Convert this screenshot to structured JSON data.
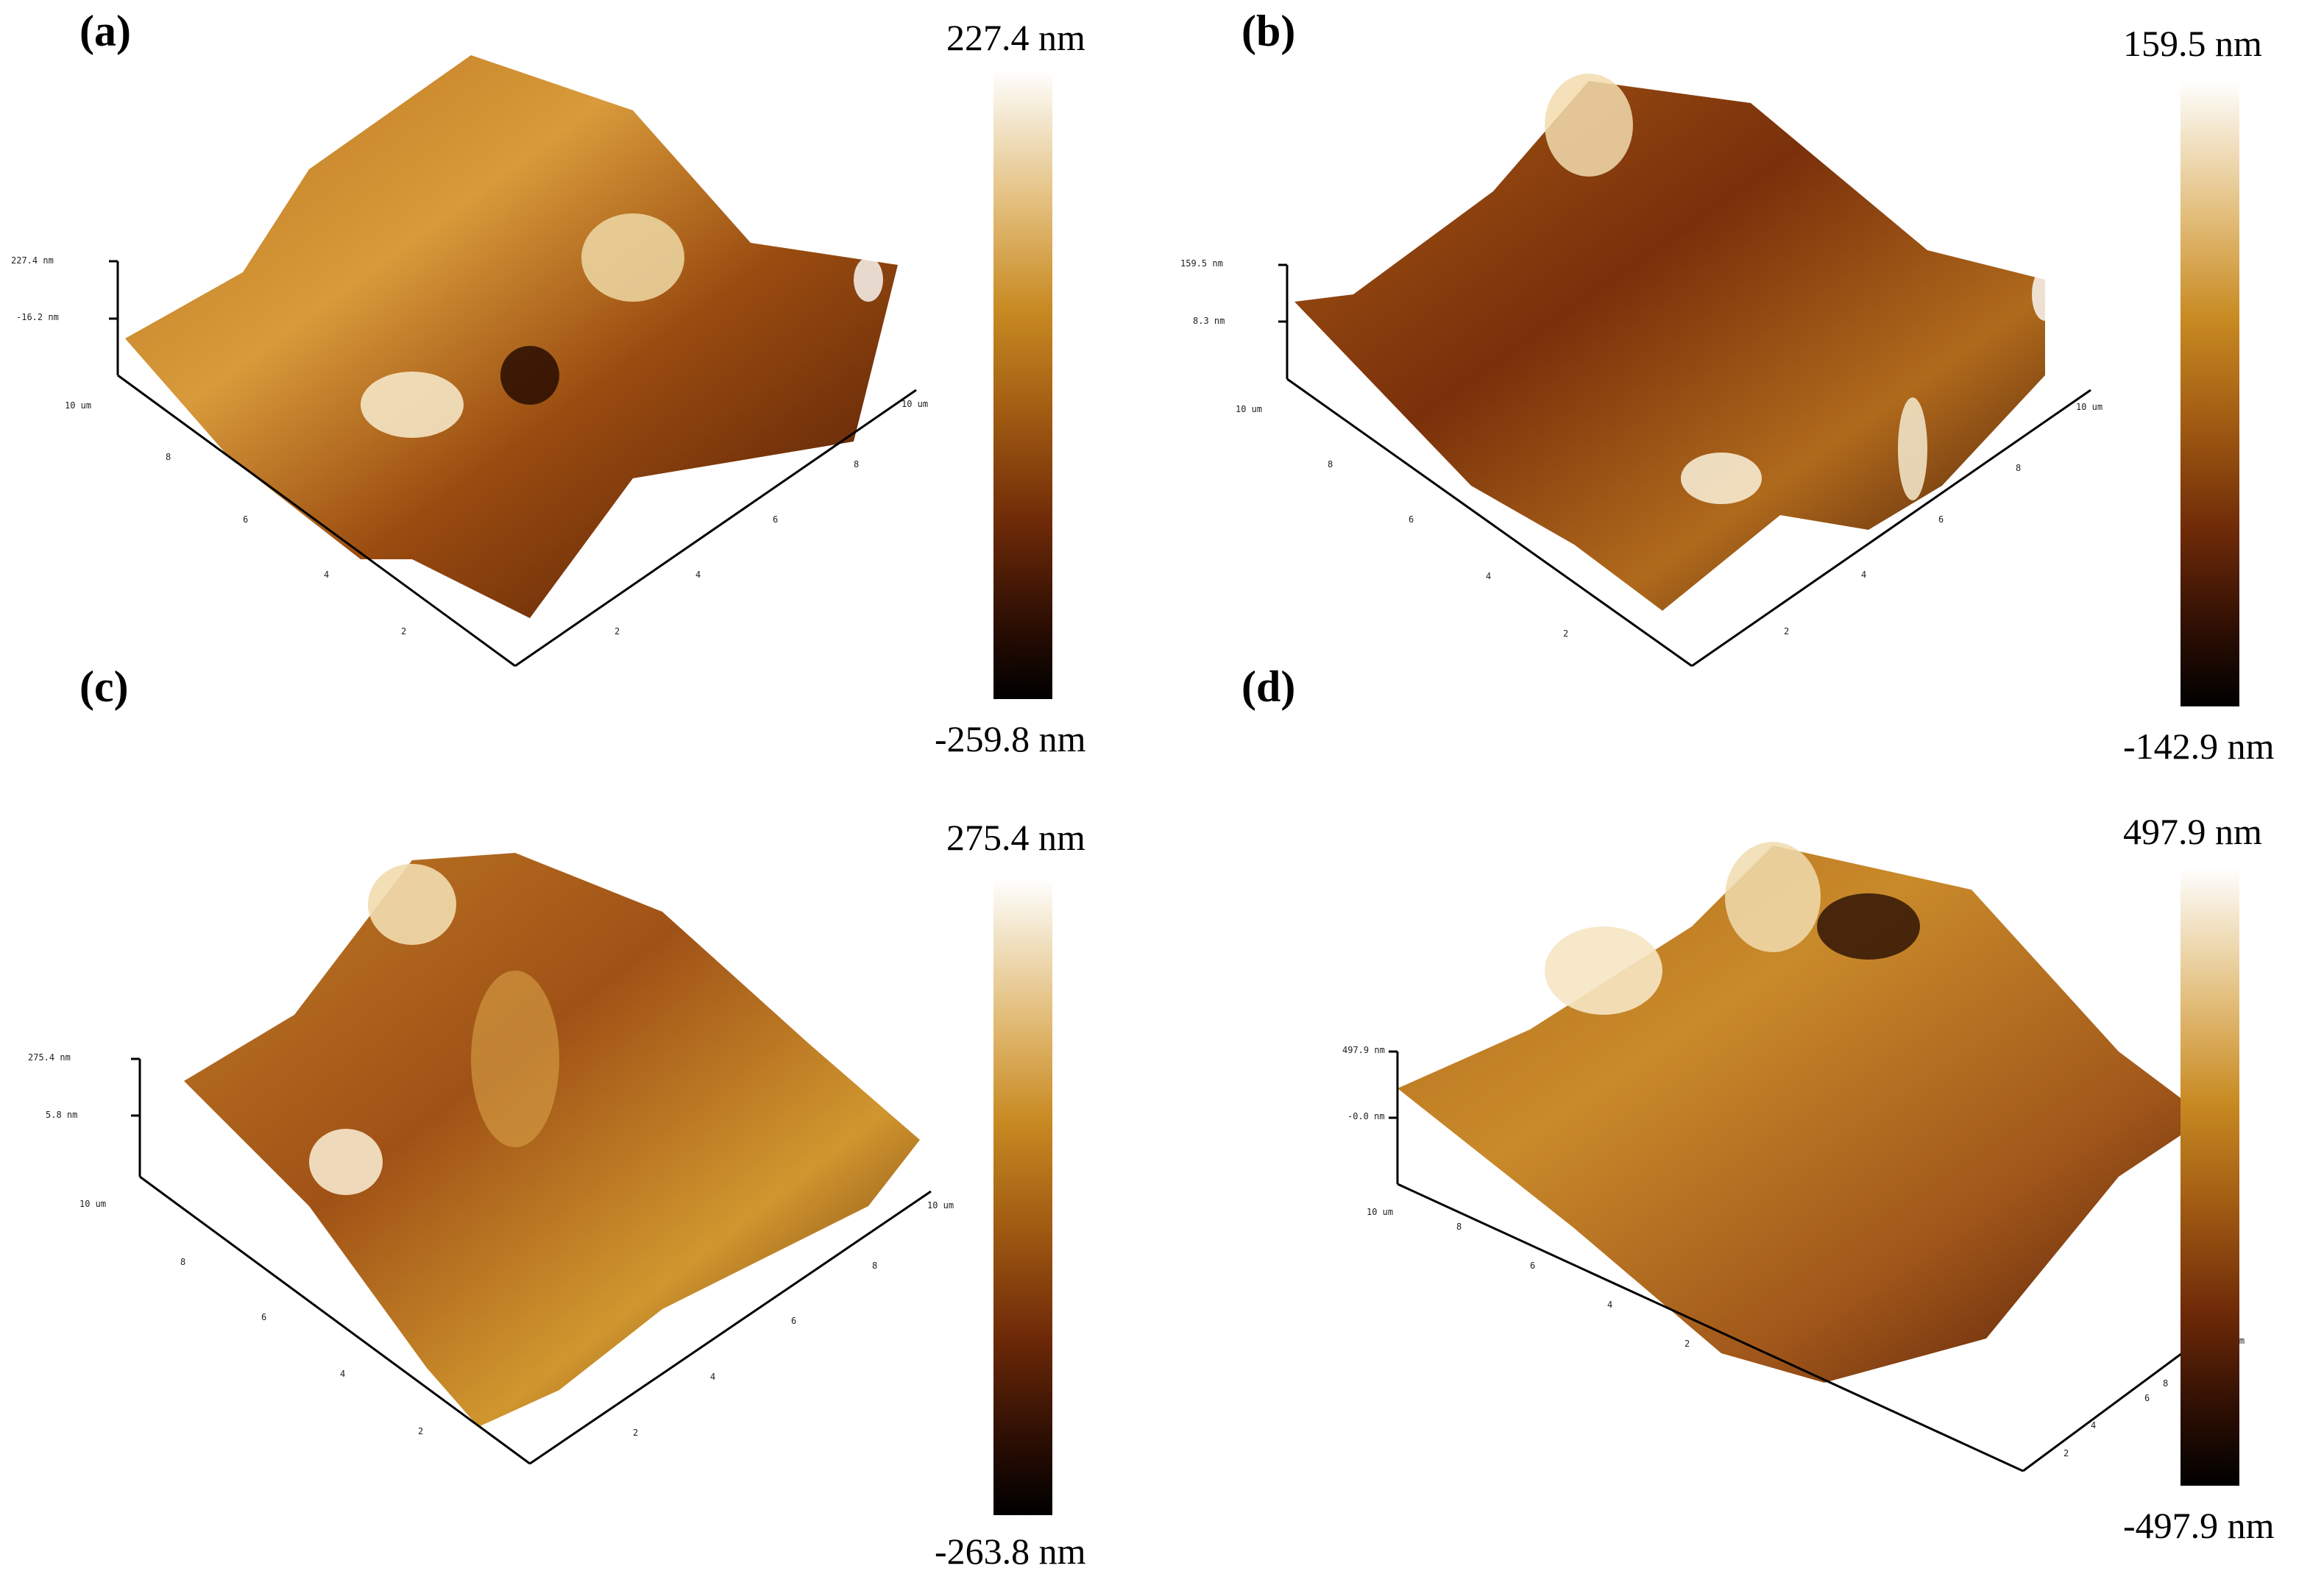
{
  "panels": [
    {
      "label": "(a)",
      "scale_max": "227.4 nm",
      "scale_min": "-259.8 nm",
      "z_top": "227.4 nm",
      "z_mid": "-16.2 nm",
      "x_end": "10 um",
      "y_end": "10 um",
      "ticks": [
        "8",
        "6",
        "4",
        "2"
      ]
    },
    {
      "label": "(b)",
      "scale_max": "159.5 nm",
      "scale_min": "-142.9 nm",
      "z_top": "159.5 nm",
      "z_mid": "8.3 nm",
      "x_end": "10 um",
      "y_end": "10 um",
      "ticks": [
        "8",
        "6",
        "4",
        "2"
      ]
    },
    {
      "label": "(c)",
      "scale_max": "275.4 nm",
      "scale_min": "-263.8 nm",
      "z_top": "275.4 nm",
      "z_mid": "5.8 nm",
      "x_end": "10 um",
      "y_end": "10 um",
      "ticks": [
        "8",
        "6",
        "4",
        "2"
      ]
    },
    {
      "label": "(d)",
      "scale_max": "497.9 nm",
      "scale_min": "-497.9 nm",
      "z_top": "497.9 nm",
      "z_mid": "-0.0 nm",
      "x_end": "10 um",
      "y_end": "10 um",
      "ticks": [
        "8",
        "6",
        "4",
        "2"
      ]
    }
  ],
  "colors": {
    "surface_light": "#f2dcae",
    "surface_mid": "#c98a2a",
    "surface_dark": "#5a1e06",
    "axis": "#000000"
  }
}
